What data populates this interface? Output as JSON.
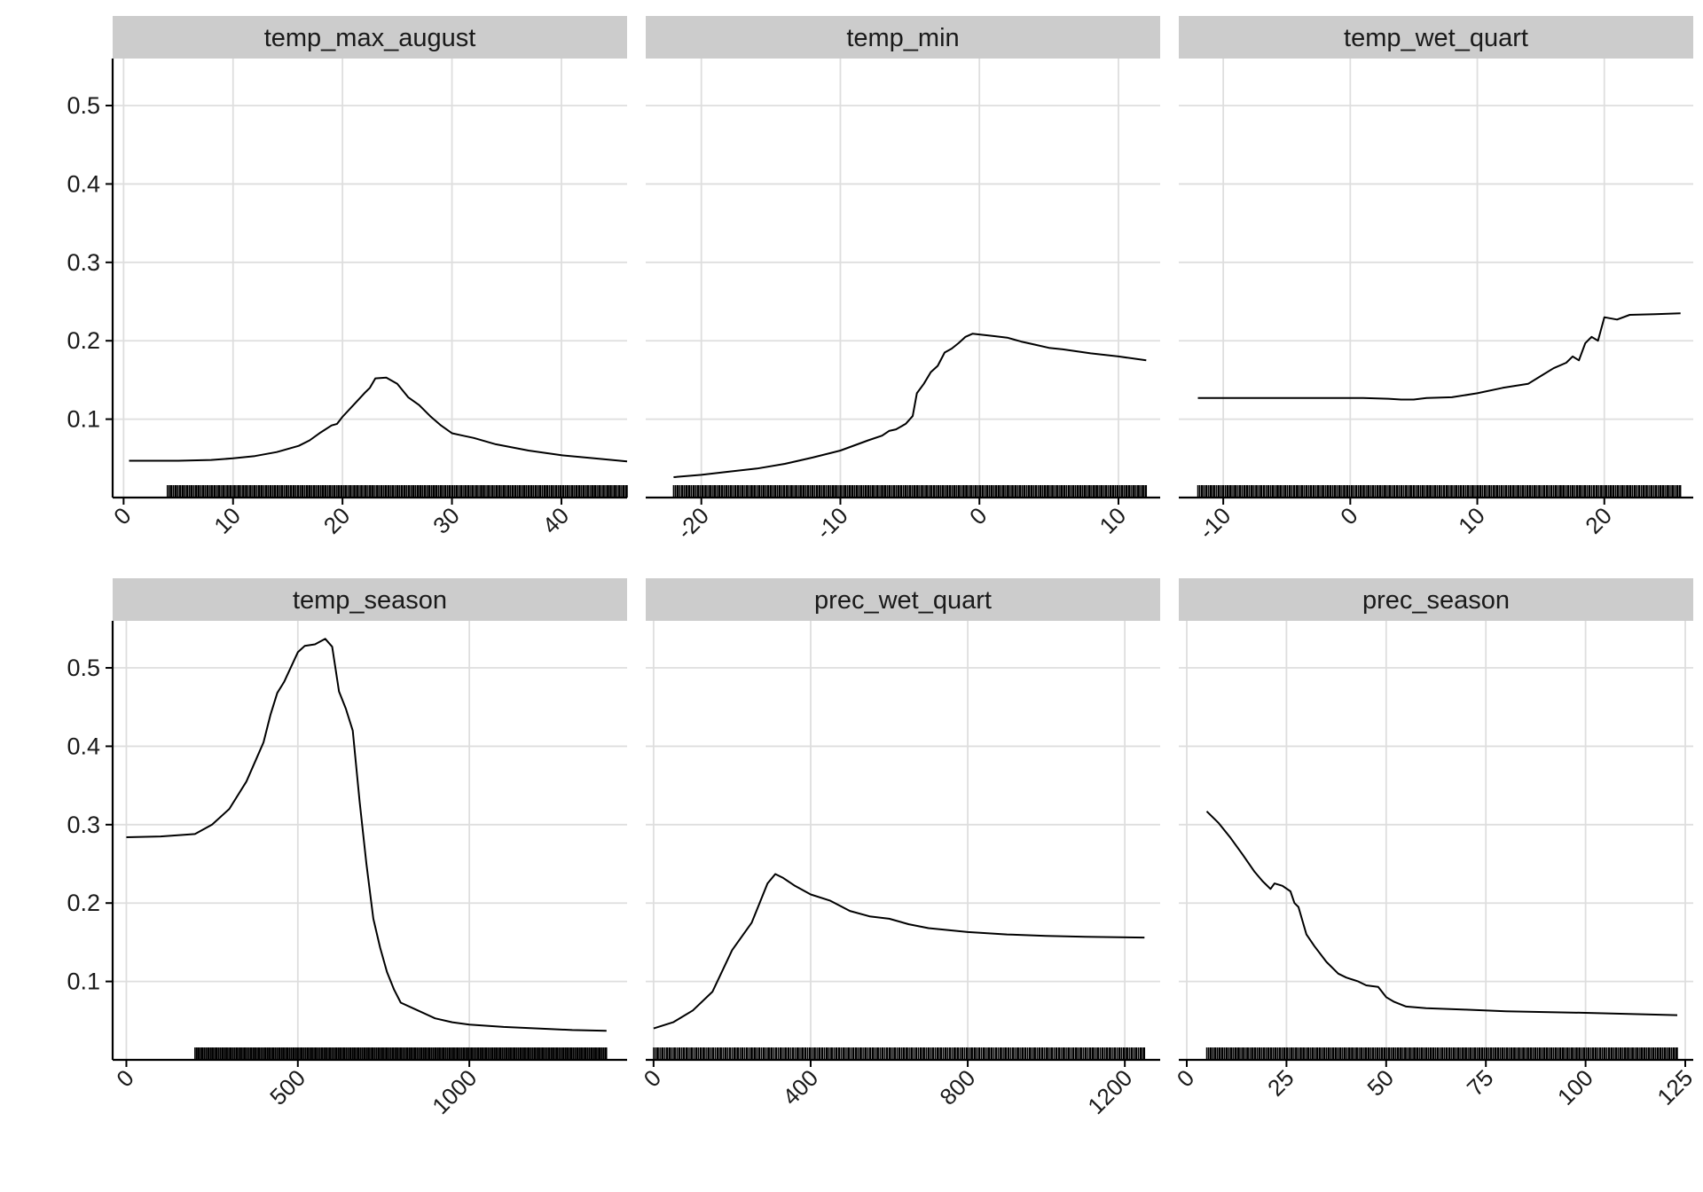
{
  "chart_data": [
    {
      "type": "line",
      "title": "temp_max_august",
      "xlim": [
        -1,
        46
      ],
      "ylim": [
        0,
        0.56
      ],
      "x_ticks": [
        0,
        10,
        20,
        30,
        40
      ],
      "y_ticks": [
        0.1,
        0.2,
        0.3,
        0.4,
        0.5
      ],
      "x": [
        0.5,
        2,
        5,
        8,
        10,
        12,
        14,
        16,
        17,
        18,
        19,
        19.5,
        20,
        21,
        22,
        22.5,
        23,
        24,
        25,
        26,
        27,
        28,
        29,
        30,
        31,
        32,
        34,
        37,
        40,
        43,
        46
      ],
      "y": [
        0.047,
        0.047,
        0.047,
        0.048,
        0.05,
        0.053,
        0.058,
        0.066,
        0.073,
        0.083,
        0.092,
        0.094,
        0.103,
        0.118,
        0.133,
        0.14,
        0.152,
        0.153,
        0.145,
        0.128,
        0.118,
        0.104,
        0.092,
        0.082,
        0.079,
        0.076,
        0.068,
        0.06,
        0.054,
        0.05,
        0.046
      ],
      "rug_range": [
        4,
        46
      ]
    },
    {
      "type": "line",
      "title": "temp_min",
      "xlim": [
        -24,
        13
      ],
      "ylim": [
        0,
        0.56
      ],
      "x_ticks": [
        -20,
        -10,
        0,
        10
      ],
      "y_ticks": [
        0.1,
        0.2,
        0.3,
        0.4,
        0.5
      ],
      "x": [
        -22,
        -20,
        -18,
        -16,
        -14,
        -12,
        -10,
        -8,
        -7,
        -6.5,
        -6,
        -5.3,
        -4.8,
        -4.5,
        -4,
        -3.5,
        -3,
        -2.5,
        -2,
        -1.5,
        -1,
        -0.5,
        0,
        1,
        2,
        3,
        4,
        5,
        6,
        8,
        10,
        12
      ],
      "y": [
        0.026,
        0.029,
        0.033,
        0.037,
        0.043,
        0.051,
        0.06,
        0.073,
        0.079,
        0.085,
        0.087,
        0.094,
        0.104,
        0.133,
        0.145,
        0.16,
        0.168,
        0.185,
        0.19,
        0.197,
        0.205,
        0.209,
        0.208,
        0.206,
        0.204,
        0.199,
        0.195,
        0.191,
        0.189,
        0.184,
        0.18,
        0.175
      ],
      "rug_range": [
        -22,
        12
      ]
    },
    {
      "type": "line",
      "title": "temp_wet_quart",
      "xlim": [
        -13.5,
        27
      ],
      "ylim": [
        0,
        0.56
      ],
      "x_ticks": [
        -10,
        0,
        10,
        20
      ],
      "y_ticks": [
        0.1,
        0.2,
        0.3,
        0.4,
        0.5
      ],
      "x": [
        -12,
        -5,
        0,
        1,
        3,
        4,
        5,
        6,
        8,
        10,
        12,
        14,
        15,
        16,
        17,
        17.5,
        18,
        18.5,
        19,
        19.5,
        20,
        21,
        22,
        24,
        26
      ],
      "y": [
        0.127,
        0.127,
        0.127,
        0.127,
        0.126,
        0.125,
        0.125,
        0.127,
        0.128,
        0.133,
        0.14,
        0.145,
        0.155,
        0.165,
        0.172,
        0.18,
        0.175,
        0.197,
        0.205,
        0.2,
        0.23,
        0.227,
        0.233,
        0.234,
        0.235
      ],
      "rug_range": [
        -12,
        26
      ]
    },
    {
      "type": "line",
      "title": "temp_season",
      "xlim": [
        -40,
        1460
      ],
      "ylim": [
        0,
        0.56
      ],
      "x_ticks": [
        0,
        500,
        1000
      ],
      "y_ticks": [
        0.1,
        0.2,
        0.3,
        0.4,
        0.5
      ],
      "x": [
        0,
        100,
        200,
        250,
        300,
        350,
        380,
        400,
        420,
        440,
        460,
        500,
        520,
        550,
        580,
        600,
        620,
        640,
        660,
        680,
        700,
        720,
        740,
        760,
        780,
        800,
        850,
        900,
        950,
        1000,
        1100,
        1200,
        1300,
        1400
      ],
      "y": [
        0.284,
        0.285,
        0.288,
        0.3,
        0.32,
        0.355,
        0.385,
        0.405,
        0.44,
        0.468,
        0.482,
        0.52,
        0.528,
        0.53,
        0.537,
        0.527,
        0.47,
        0.448,
        0.42,
        0.33,
        0.25,
        0.18,
        0.143,
        0.112,
        0.09,
        0.073,
        0.063,
        0.053,
        0.048,
        0.045,
        0.042,
        0.04,
        0.038,
        0.037
      ],
      "rug_range": [
        200,
        1400
      ]
    },
    {
      "type": "line",
      "title": "prec_wet_quart",
      "xlim": [
        -20,
        1290
      ],
      "ylim": [
        0,
        0.56
      ],
      "x_ticks": [
        0,
        400,
        800,
        1200
      ],
      "y_ticks": [
        0.1,
        0.2,
        0.3,
        0.4,
        0.5
      ],
      "x": [
        0,
        50,
        100,
        150,
        200,
        250,
        270,
        290,
        310,
        330,
        360,
        400,
        450,
        500,
        550,
        600,
        650,
        700,
        800,
        900,
        1000,
        1100,
        1250
      ],
      "y": [
        0.04,
        0.048,
        0.063,
        0.087,
        0.14,
        0.175,
        0.2,
        0.225,
        0.237,
        0.232,
        0.222,
        0.211,
        0.203,
        0.19,
        0.183,
        0.18,
        0.173,
        0.168,
        0.163,
        0.16,
        0.158,
        0.157,
        0.156
      ],
      "rug_range": [
        0,
        1250
      ]
    },
    {
      "type": "line",
      "title": "prec_season",
      "xlim": [
        -2,
        127
      ],
      "ylim": [
        0,
        0.56
      ],
      "x_ticks": [
        0,
        25,
        50,
        75,
        100,
        125
      ],
      "y_ticks": [
        0.1,
        0.2,
        0.3,
        0.4,
        0.5
      ],
      "x": [
        5,
        8,
        11,
        14,
        17,
        19,
        21,
        22,
        24,
        26,
        27,
        28,
        30,
        32,
        35,
        38,
        40,
        43,
        45,
        48,
        50,
        52,
        55,
        60,
        70,
        80,
        100,
        123
      ],
      "y": [
        0.317,
        0.302,
        0.283,
        0.262,
        0.24,
        0.228,
        0.218,
        0.225,
        0.222,
        0.215,
        0.2,
        0.195,
        0.16,
        0.145,
        0.125,
        0.11,
        0.105,
        0.1,
        0.095,
        0.093,
        0.08,
        0.074,
        0.068,
        0.066,
        0.064,
        0.062,
        0.06,
        0.057
      ],
      "rug_range": [
        5,
        123
      ]
    }
  ]
}
